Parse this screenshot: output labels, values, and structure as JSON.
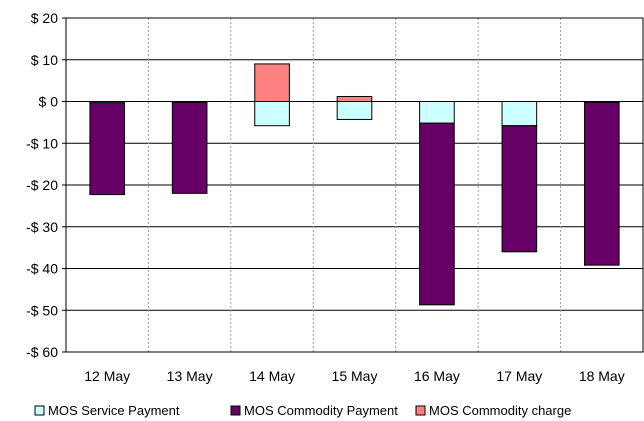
{
  "chart_data": {
    "type": "bar",
    "stacked": true,
    "categories": [
      "12 May",
      "13 May",
      "14 May",
      "15 May",
      "16 May",
      "17 May",
      "18 May"
    ],
    "series": [
      {
        "name": "MOS Service Payment",
        "color": "#ccffff",
        "values": [
          -0.3,
          -0.2,
          -5.8,
          -4.3,
          -5.2,
          -5.8,
          -0.2
        ]
      },
      {
        "name": "MOS Commodity Payment",
        "color": "#660066",
        "values": [
          -22.0,
          -21.8,
          0,
          0,
          -43.5,
          -30.2,
          -39.0
        ]
      },
      {
        "name": "MOS Commodity charge",
        "color": "#ff8080",
        "values": [
          0,
          0,
          9.0,
          1.2,
          0,
          0,
          0
        ]
      }
    ],
    "yticks": [
      20,
      10,
      0,
      -10,
      -20,
      -30,
      -40,
      -50,
      -60
    ],
    "ytick_labels": [
      "$ 20",
      "$ 10",
      "$ 0",
      "-$ 10",
      "-$ 20",
      "-$ 30",
      "-$ 40",
      "-$ 50",
      "-$ 60"
    ],
    "ylim": [
      -60,
      20
    ],
    "grid": true,
    "legend_position": "bottom"
  }
}
